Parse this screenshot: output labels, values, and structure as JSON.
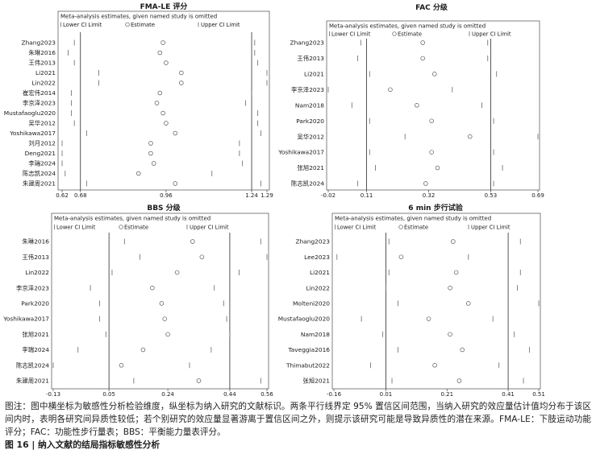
{
  "chart_data": [
    {
      "type": "scatter",
      "title": "FMA-LE 评分",
      "subtitle": "Meta-analysis estimates, given named study is omitted",
      "legend_placement": "top",
      "grid": false,
      "xlim": [
        0.62,
        1.29
      ],
      "xticks": [
        0.62,
        0.68,
        0.96,
        1.24,
        1.29
      ],
      "reference_lines": [
        0.68,
        1.24
      ],
      "studies": [
        "Zhang2023",
        "朱琳2016",
        "王伟2013",
        "Li2021",
        "Lin2022",
        "崔宏伟2014",
        "李京泽2023",
        "Mustafaoglu2020",
        "吴华2012",
        "Yoshikawa2017",
        "刘月2012",
        "Deng2021",
        "李瑞2024",
        "陈志凯2024",
        "朱建周2021"
      ],
      "series": [
        {
          "name": "Lower CI Limit",
          "values": [
            0.66,
            0.64,
            0.66,
            0.74,
            0.74,
            0.65,
            0.65,
            0.65,
            0.66,
            0.7,
            0.62,
            0.62,
            0.62,
            0.63,
            0.7
          ]
        },
        {
          "name": "Estimate",
          "values": [
            0.95,
            0.94,
            0.96,
            1.01,
            1.01,
            0.94,
            0.93,
            0.95,
            0.96,
            0.99,
            0.91,
            0.91,
            0.92,
            0.87,
            0.99
          ]
        },
        {
          "name": "Upper CI Limit",
          "values": [
            1.25,
            1.25,
            1.26,
            1.29,
            1.29,
            1.24,
            1.22,
            1.26,
            1.26,
            1.27,
            1.2,
            1.2,
            1.21,
            1.11,
            1.27
          ]
        }
      ]
    },
    {
      "type": "scatter",
      "title": "FAC 分级",
      "subtitle": "Meta-analysis estimates, given named study is omitted",
      "legend_placement": "top",
      "grid": false,
      "xlim": [
        -0.02,
        0.69
      ],
      "xticks": [
        -0.02,
        0.11,
        0.32,
        0.53,
        0.69
      ],
      "reference_lines": [
        0.11,
        0.53
      ],
      "studies": [
        "Zhang2023",
        "王伟2013",
        "Li2021",
        "李京泽2023",
        "Nam2018",
        "Park2020",
        "吴华2012",
        "Yoshikawa2017",
        "张旭2021",
        "陈志凯2024"
      ],
      "series": [
        {
          "name": "Lower CI Limit",
          "values": [
            0.09,
            0.08,
            0.12,
            -0.02,
            0.06,
            0.12,
            0.24,
            0.12,
            0.14,
            0.08
          ]
        },
        {
          "name": "Estimate",
          "values": [
            0.3,
            0.3,
            0.34,
            0.19,
            0.28,
            0.33,
            0.46,
            0.33,
            0.35,
            0.31
          ]
        },
        {
          "name": "Upper CI Limit",
          "values": [
            0.52,
            0.52,
            0.55,
            0.4,
            0.5,
            0.54,
            0.69,
            0.54,
            0.57,
            0.54
          ]
        }
      ]
    },
    {
      "type": "scatter",
      "title": "BBS 分级",
      "subtitle": "Meta-analysis estimates, given named study is omitted",
      "legend_placement": "top",
      "grid": false,
      "xlim": [
        -0.13,
        0.56
      ],
      "xticks": [
        -0.13,
        0.05,
        0.24,
        0.44,
        0.56
      ],
      "reference_lines": [
        0.05,
        0.44
      ],
      "studies": [
        "朱琳2016",
        "王伟2013",
        "Lin2022",
        "李京泽2023",
        "Park2020",
        "Yoshikawa2017",
        "张旭2021",
        "李瑞2024",
        "陈志凯2024",
        "朱建周2021"
      ],
      "series": [
        {
          "name": "Lower CI Limit",
          "values": [
            0.1,
            0.15,
            0.06,
            -0.01,
            0.02,
            0.02,
            0.04,
            -0.05,
            -0.13,
            0.13
          ]
        },
        {
          "name": "Estimate",
          "values": [
            0.32,
            0.35,
            0.27,
            0.19,
            0.22,
            0.23,
            0.24,
            0.16,
            0.09,
            0.34
          ]
        },
        {
          "name": "Upper CI Limit",
          "values": [
            0.54,
            0.56,
            0.47,
            0.39,
            0.42,
            0.43,
            0.44,
            0.38,
            0.31,
            0.54
          ]
        }
      ]
    },
    {
      "type": "scatter",
      "title": "6 min 步行试验",
      "subtitle": "Meta-analysis estimates, given named study is omitted",
      "legend_placement": "top",
      "grid": false,
      "xlim": [
        -0.16,
        0.51
      ],
      "xticks": [
        -0.16,
        0.01,
        0.21,
        0.41,
        0.51
      ],
      "reference_lines": [
        0.01,
        0.41
      ],
      "studies": [
        "Zhang2023",
        "Lee2023",
        "Li2021",
        "Lin2022",
        "Molteni2020",
        "Mustafaoglu2020",
        "Nam2018",
        "Taveggia2016",
        "Thimabut2022",
        "张旭2021"
      ],
      "series": [
        {
          "name": "Lower CI Limit",
          "values": [
            0.02,
            -0.15,
            0.02,
            0.01,
            0.05,
            -0.07,
            0.0,
            0.05,
            -0.04,
            0.03
          ]
        },
        {
          "name": "Estimate",
          "values": [
            0.23,
            0.06,
            0.24,
            0.22,
            0.28,
            0.15,
            0.22,
            0.26,
            0.17,
            0.25
          ]
        },
        {
          "name": "Upper CI Limit",
          "values": [
            0.45,
            0.28,
            0.45,
            0.44,
            0.51,
            0.36,
            0.43,
            0.48,
            0.38,
            0.46
          ]
        }
      ]
    }
  ],
  "caption": {
    "note": "图注：图中横坐标为敏感性分析检验维度，纵坐标为纳入研究的文献标识。两条平行线界定 95% 置信区间范围，当纳入研究的效应量估计值均分布于该区间内时，表明各研究间异质性较低；若个别研究的效应量显著游离于置信区间之外，则提示该研究可能是导致异质性的潜在来源。FMA-LE：下肢运动功能评分；FAC：功能性步行量表；BBS：平衡能力量表评分。",
    "figure_label": "图 16 | 纳入文献的结局指标敏感性分析"
  }
}
